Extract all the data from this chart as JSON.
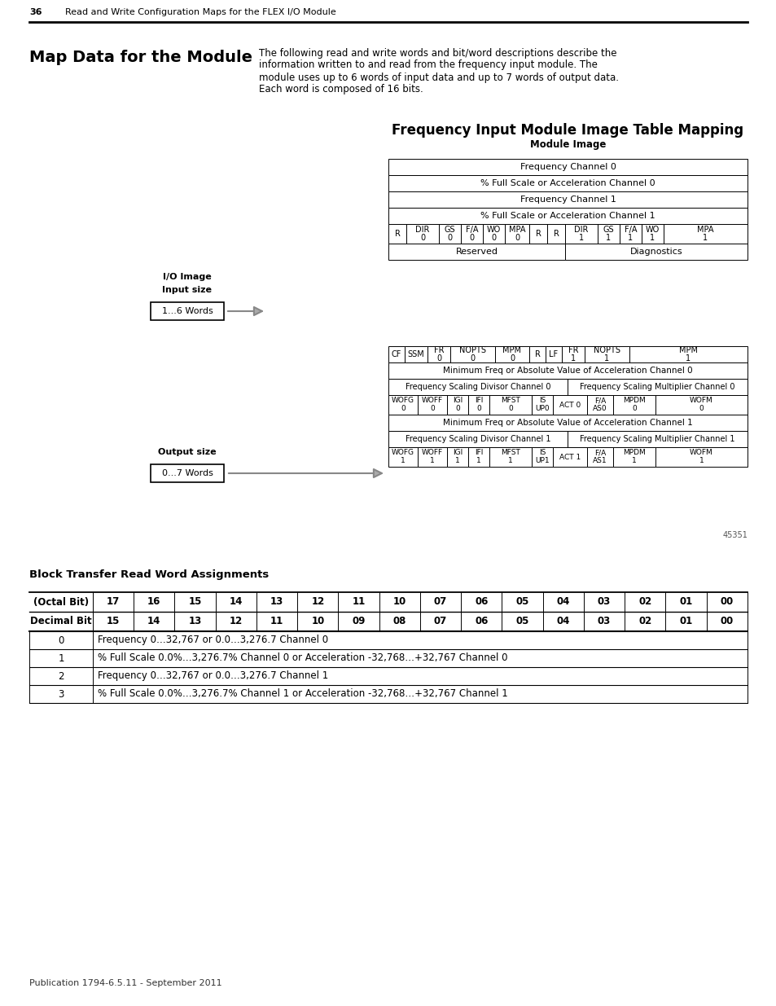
{
  "page_header_num": "36",
  "page_header_text": "Read and Write Configuration Maps for the FLEX I/O Module",
  "section_title": "Map Data for the Module",
  "section_body_lines": [
    "The following read and write words and bit/word descriptions describe the",
    "information written to and read from the frequency input module. The",
    "module uses up to 6 words of input data and up to 7 words of output data.",
    "Each word is composed of 16 bits."
  ],
  "diagram_title": "Frequency Input Module Image Table Mapping",
  "module_image_label": "Module Image",
  "io_image_label": "I/O Image",
  "input_size_label": "Input size",
  "input_box_text": "1...6 Words",
  "output_size_label": "Output size",
  "output_box_text": "0...7 Words",
  "figure_number": "45351",
  "block_transfer_title": "Block Transfer Read Word Assignments",
  "footer": "Publication 1794-6.5.11 - September 2011",
  "bg_color": "#ffffff"
}
